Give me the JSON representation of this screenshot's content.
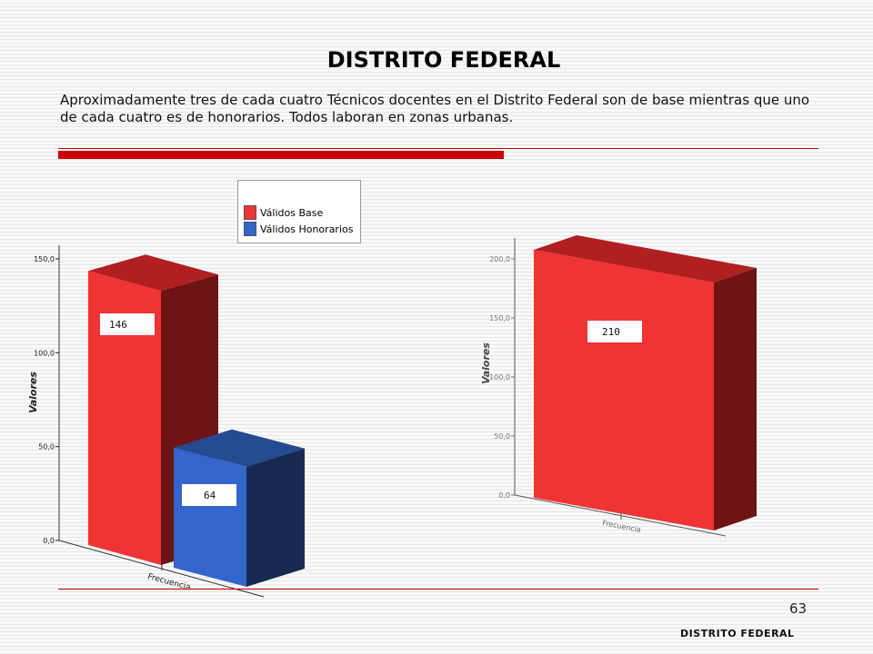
{
  "slide": {
    "title": "DISTRITO FEDERAL",
    "description": "Aproximadamente tres de cada cuatro Técnicos docentes en el Distrito Federal son de base mientras que uno de cada cuatro es de honorarios. Todos laboran en zonas urbanas.",
    "page_number": "63",
    "footer": "DISTRITO FEDERAL"
  },
  "colors": {
    "accent": "#cc0000",
    "base_front": "#f03333",
    "base_top": "#b02020",
    "base_side": "#6e1414",
    "hon_front": "#3366cc",
    "hon_top": "#244a8f",
    "hon_side": "#172a52"
  },
  "chart_data": [
    {
      "type": "bar",
      "categories": [
        "Frecuencia"
      ],
      "series": [
        {
          "name": "Válidos Base",
          "values": [
            146
          ],
          "label": "146"
        },
        {
          "name": "Válidos Honorarios",
          "values": [
            64
          ],
          "label": "64"
        }
      ],
      "ylabel": "Valores",
      "xlabel": "",
      "ylim": [
        0,
        150
      ],
      "yticks": [
        "0,0",
        "50,0",
        "100,0",
        "150,0"
      ],
      "legend": "top-right",
      "three_d": true
    },
    {
      "type": "bar",
      "categories": [
        "Frecuencia"
      ],
      "series": [
        {
          "name": "Válidos Base",
          "values": [
            210
          ],
          "label": "210"
        }
      ],
      "ylabel": "Valores",
      "xlabel": "",
      "ylim": [
        0,
        200
      ],
      "yticks": [
        "0,0",
        "50,0",
        "100,0",
        "150,0",
        "200,0"
      ],
      "three_d": true
    }
  ]
}
